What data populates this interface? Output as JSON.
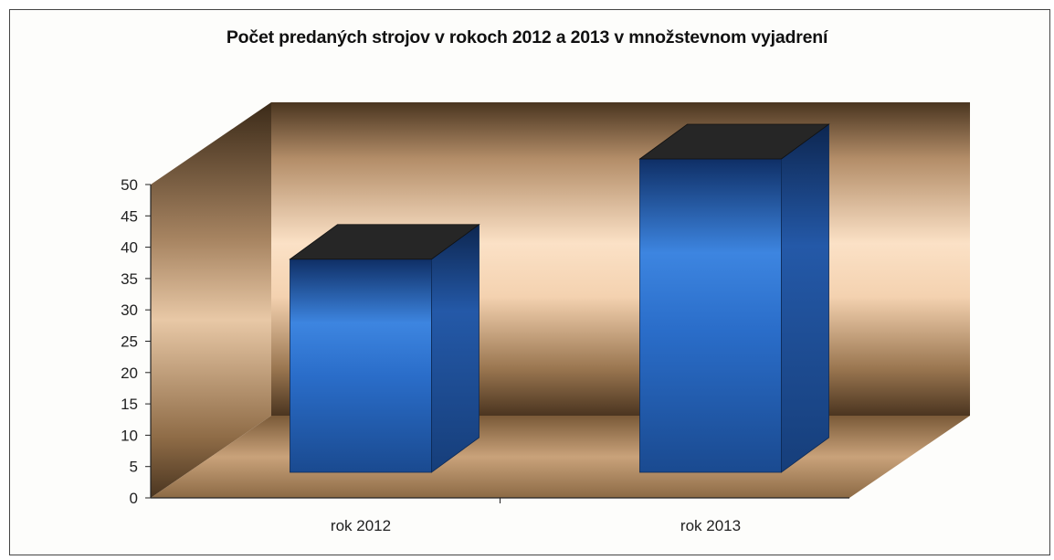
{
  "colors": {
    "bar_front": "#2a6dc9",
    "bar_side": "#1d4f95",
    "bar_top": "#262626",
    "wall_light": "#f8dcc0",
    "wall_dark": "#3a2a18",
    "floor": "#c9a27a"
  },
  "chart_data": {
    "type": "bar",
    "style": "3d-column",
    "title": "Počet predaných strojov v rokoch 2012 a 2013 v množstevnom vyjadrení",
    "categories": [
      "rok 2012",
      "rok 2013"
    ],
    "values": [
      34,
      50
    ],
    "xlabel": "",
    "ylabel": "",
    "ylim": [
      0,
      50
    ],
    "yticks": [
      0,
      5,
      10,
      15,
      20,
      25,
      30,
      35,
      40,
      45,
      50
    ],
    "grid": false,
    "legend": "none"
  }
}
